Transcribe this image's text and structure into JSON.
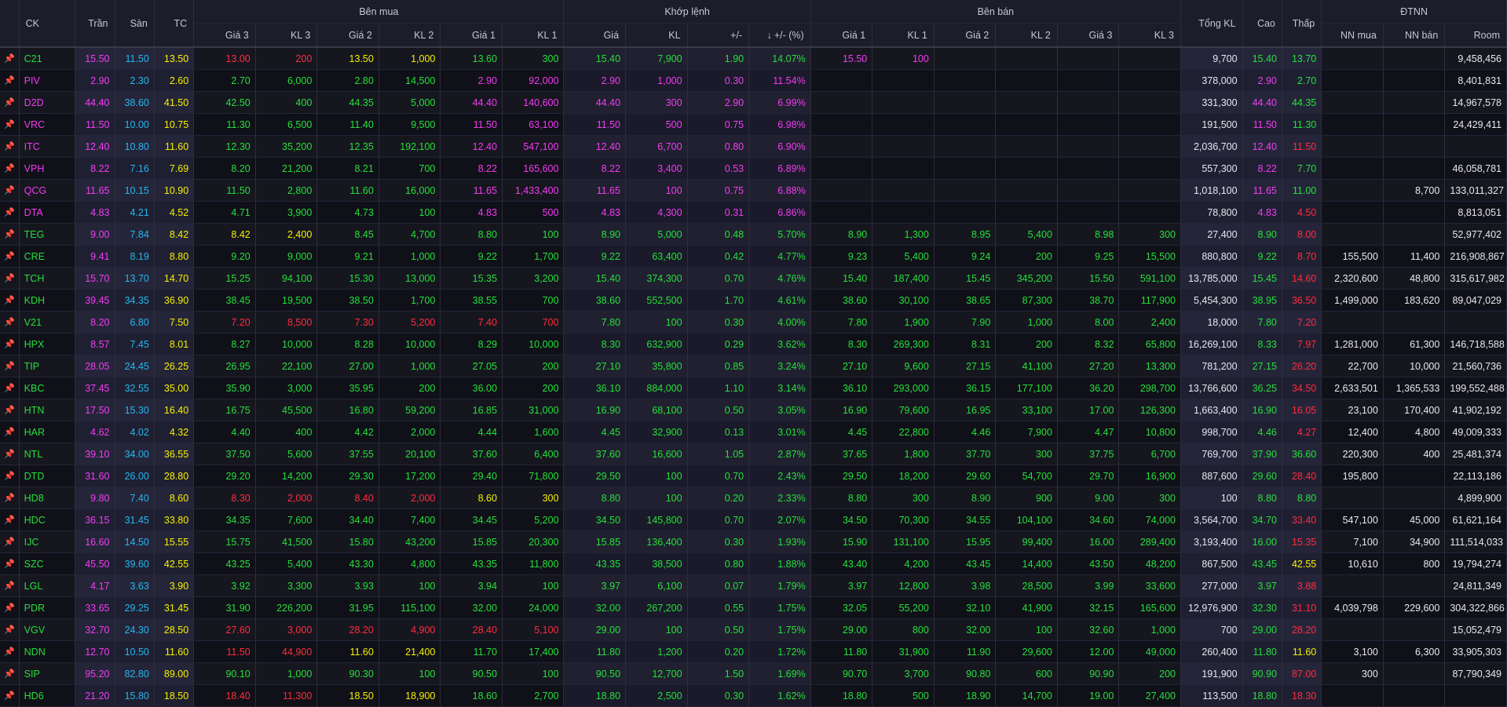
{
  "header": {
    "ck": "CK",
    "tran": "Trần",
    "san": "Sàn",
    "tc": "TC",
    "groups": {
      "ben_mua": "Bên mua",
      "khop_lenh": "Khớp lệnh",
      "ben_ban": "Bên bán",
      "dtnn": "ĐTNN"
    },
    "tong_kl": "Tổng KL",
    "cao": "Cao",
    "thap": "Thấp",
    "sub": [
      "Giá 3",
      "KL 3",
      "Giá 2",
      "KL 2",
      "Giá 1",
      "KL 1",
      "Giá",
      "KL",
      "+/-",
      "+/- (%)",
      "Giá 1",
      "KL 1",
      "Giá 2",
      "KL 2",
      "Giá 3",
      "KL 3",
      "NN mua",
      "NN bán",
      "Room"
    ],
    "sort_arrow": "↓"
  },
  "pin_icon": "📌",
  "colors": {
    "ceiling": "#f23cf2",
    "floor": "#22b8f0",
    "reference": "#f5f000",
    "up": "#25e03a",
    "down": "#ff2d3d",
    "neutral": "#e8e8ee"
  },
  "rows": [
    [
      "C21",
      "15.50",
      "11.50",
      "13.50",
      "13.00",
      "200",
      "13.50",
      "1,000",
      "13.60",
      "300",
      "15.40",
      "7,900",
      "1.90",
      "14.07%",
      "15.50",
      "100",
      "",
      "",
      "",
      "",
      "9,700",
      "15.40",
      "13.70",
      "",
      "",
      "9,458,456"
    ],
    [
      "PIV",
      "2.90",
      "2.30",
      "2.60",
      "2.70",
      "6,000",
      "2.80",
      "14,500",
      "2.90",
      "92,000",
      "2.90",
      "1,000",
      "0.30",
      "11.54%",
      "",
      "",
      "",
      "",
      "",
      "",
      "378,000",
      "2.90",
      "2.70",
      "",
      "",
      "8,401,831"
    ],
    [
      "D2D",
      "44.40",
      "38.60",
      "41.50",
      "42.50",
      "400",
      "44.35",
      "5,000",
      "44.40",
      "140,600",
      "44.40",
      "300",
      "2.90",
      "6.99%",
      "",
      "",
      "",
      "",
      "",
      "",
      "331,300",
      "44.40",
      "44.35",
      "",
      "",
      "14,967,578"
    ],
    [
      "VRC",
      "11.50",
      "10.00",
      "10.75",
      "11.30",
      "6,500",
      "11.40",
      "9,500",
      "11.50",
      "63,100",
      "11.50",
      "500",
      "0.75",
      "6.98%",
      "",
      "",
      "",
      "",
      "",
      "",
      "191,500",
      "11.50",
      "11.30",
      "",
      "",
      "24,429,411"
    ],
    [
      "ITC",
      "12.40",
      "10.80",
      "11.60",
      "12.30",
      "35,200",
      "12.35",
      "192,100",
      "12.40",
      "547,100",
      "12.40",
      "6,700",
      "0.80",
      "6.90%",
      "",
      "",
      "",
      "",
      "",
      "",
      "2,036,700",
      "12.40",
      "11.50",
      "",
      "",
      ""
    ],
    [
      "VPH",
      "8.22",
      "7.16",
      "7.69",
      "8.20",
      "21,200",
      "8.21",
      "700",
      "8.22",
      "165,600",
      "8.22",
      "3,400",
      "0.53",
      "6.89%",
      "",
      "",
      "",
      "",
      "",
      "",
      "557,300",
      "8.22",
      "7.70",
      "",
      "",
      "46,058,781"
    ],
    [
      "QCG",
      "11.65",
      "10.15",
      "10.90",
      "11.50",
      "2,800",
      "11.60",
      "16,000",
      "11.65",
      "1,433,400",
      "11.65",
      "100",
      "0.75",
      "6.88%",
      "",
      "",
      "",
      "",
      "",
      "",
      "1,018,100",
      "11.65",
      "11.00",
      "",
      "8,700",
      "133,011,327"
    ],
    [
      "DTA",
      "4.83",
      "4.21",
      "4.52",
      "4.71",
      "3,900",
      "4.73",
      "100",
      "4.83",
      "500",
      "4.83",
      "4,300",
      "0.31",
      "6.86%",
      "",
      "",
      "",
      "",
      "",
      "",
      "78,800",
      "4.83",
      "4.50",
      "",
      "",
      "8,813,051"
    ],
    [
      "TEG",
      "9.00",
      "7.84",
      "8.42",
      "8.42",
      "2,400",
      "8.45",
      "4,700",
      "8.80",
      "100",
      "8.90",
      "5,000",
      "0.48",
      "5.70%",
      "8.90",
      "1,300",
      "8.95",
      "5,400",
      "8.98",
      "300",
      "27,400",
      "8.90",
      "8.00",
      "",
      "",
      "52,977,402"
    ],
    [
      "CRE",
      "9.41",
      "8.19",
      "8.80",
      "9.20",
      "9,000",
      "9.21",
      "1,000",
      "9.22",
      "1,700",
      "9.22",
      "63,400",
      "0.42",
      "4.77%",
      "9.23",
      "5,400",
      "9.24",
      "200",
      "9.25",
      "15,500",
      "880,800",
      "9.22",
      "8.70",
      "155,500",
      "11,400",
      "216,908,867"
    ],
    [
      "TCH",
      "15.70",
      "13.70",
      "14.70",
      "15.25",
      "94,100",
      "15.30",
      "13,000",
      "15.35",
      "3,200",
      "15.40",
      "374,300",
      "0.70",
      "4.76%",
      "15.40",
      "187,400",
      "15.45",
      "345,200",
      "15.50",
      "591,100",
      "13,785,000",
      "15.45",
      "14.60",
      "2,320,600",
      "48,800",
      "315,617,982"
    ],
    [
      "KDH",
      "39.45",
      "34.35",
      "36.90",
      "38.45",
      "19,500",
      "38.50",
      "1,700",
      "38.55",
      "700",
      "38.60",
      "552,500",
      "1.70",
      "4.61%",
      "38.60",
      "30,100",
      "38.65",
      "87,300",
      "38.70",
      "117,900",
      "5,454,300",
      "38.95",
      "36.50",
      "1,499,000",
      "183,620",
      "89,047,029"
    ],
    [
      "V21",
      "8.20",
      "6.80",
      "7.50",
      "7.20",
      "8,500",
      "7.30",
      "5,200",
      "7.40",
      "700",
      "7.80",
      "100",
      "0.30",
      "4.00%",
      "7.80",
      "1,900",
      "7.90",
      "1,000",
      "8.00",
      "2,400",
      "18,000",
      "7.80",
      "7.20",
      "",
      "",
      ""
    ],
    [
      "HPX",
      "8.57",
      "7.45",
      "8.01",
      "8.27",
      "10,000",
      "8.28",
      "10,000",
      "8.29",
      "10,000",
      "8.30",
      "632,900",
      "0.29",
      "3.62%",
      "8.30",
      "269,300",
      "8.31",
      "200",
      "8.32",
      "65,800",
      "16,269,100",
      "8.33",
      "7.97",
      "1,281,000",
      "61,300",
      "146,718,588"
    ],
    [
      "TIP",
      "28.05",
      "24.45",
      "26.25",
      "26.95",
      "22,100",
      "27.00",
      "1,000",
      "27.05",
      "200",
      "27.10",
      "35,800",
      "0.85",
      "3.24%",
      "27.10",
      "9,600",
      "27.15",
      "41,100",
      "27.20",
      "13,300",
      "781,200",
      "27.15",
      "26.20",
      "22,700",
      "10,000",
      "21,560,736"
    ],
    [
      "KBC",
      "37.45",
      "32.55",
      "35.00",
      "35.90",
      "3,000",
      "35.95",
      "200",
      "36.00",
      "200",
      "36.10",
      "884,000",
      "1.10",
      "3.14%",
      "36.10",
      "293,000",
      "36.15",
      "177,100",
      "36.20",
      "298,700",
      "13,766,600",
      "36.25",
      "34.50",
      "2,633,501",
      "1,365,533",
      "199,552,488"
    ],
    [
      "HTN",
      "17.50",
      "15.30",
      "16.40",
      "16.75",
      "45,500",
      "16.80",
      "59,200",
      "16.85",
      "31,000",
      "16.90",
      "68,100",
      "0.50",
      "3.05%",
      "16.90",
      "79,600",
      "16.95",
      "33,100",
      "17.00",
      "126,300",
      "1,663,400",
      "16.90",
      "16.05",
      "23,100",
      "170,400",
      "41,902,192"
    ],
    [
      "HAR",
      "4.62",
      "4.02",
      "4.32",
      "4.40",
      "400",
      "4.42",
      "2,000",
      "4.44",
      "1,600",
      "4.45",
      "32,900",
      "0.13",
      "3.01%",
      "4.45",
      "22,800",
      "4.46",
      "7,900",
      "4.47",
      "10,800",
      "998,700",
      "4.46",
      "4.27",
      "12,400",
      "4,800",
      "49,009,333"
    ],
    [
      "NTL",
      "39.10",
      "34.00",
      "36.55",
      "37.50",
      "5,600",
      "37.55",
      "20,100",
      "37.60",
      "6,400",
      "37.60",
      "16,600",
      "1.05",
      "2.87%",
      "37.65",
      "1,800",
      "37.70",
      "300",
      "37.75",
      "6,700",
      "769,700",
      "37.90",
      "36.60",
      "220,300",
      "400",
      "25,481,374"
    ],
    [
      "DTD",
      "31.60",
      "26.00",
      "28.80",
      "29.20",
      "14,200",
      "29.30",
      "17,200",
      "29.40",
      "71,800",
      "29.50",
      "100",
      "0.70",
      "2.43%",
      "29.50",
      "18,200",
      "29.60",
      "54,700",
      "29.70",
      "16,900",
      "887,600",
      "29.60",
      "28.40",
      "195,800",
      "",
      "22,113,186"
    ],
    [
      "HD8",
      "9.80",
      "7.40",
      "8.60",
      "8.30",
      "2,000",
      "8.40",
      "2,000",
      "8.60",
      "300",
      "8.80",
      "100",
      "0.20",
      "2.33%",
      "8.80",
      "300",
      "8.90",
      "900",
      "9.00",
      "300",
      "100",
      "8.80",
      "8.80",
      "",
      "",
      "4,899,900"
    ],
    [
      "HDC",
      "36.15",
      "31.45",
      "33.80",
      "34.35",
      "7,600",
      "34.40",
      "7,400",
      "34.45",
      "5,200",
      "34.50",
      "145,800",
      "0.70",
      "2.07%",
      "34.50",
      "70,300",
      "34.55",
      "104,100",
      "34.60",
      "74,000",
      "3,564,700",
      "34.70",
      "33.40",
      "547,100",
      "45,000",
      "61,621,164"
    ],
    [
      "IJC",
      "16.60",
      "14.50",
      "15.55",
      "15.75",
      "41,500",
      "15.80",
      "43,200",
      "15.85",
      "20,300",
      "15.85",
      "136,400",
      "0.30",
      "1.93%",
      "15.90",
      "131,100",
      "15.95",
      "99,400",
      "16.00",
      "289,400",
      "3,193,400",
      "16.00",
      "15.35",
      "7,100",
      "34,900",
      "111,514,033"
    ],
    [
      "SZC",
      "45.50",
      "39.60",
      "42.55",
      "43.25",
      "5,400",
      "43.30",
      "4,800",
      "43.35",
      "11,800",
      "43.35",
      "38,500",
      "0.80",
      "1.88%",
      "43.40",
      "4,200",
      "43.45",
      "14,400",
      "43.50",
      "48,200",
      "867,500",
      "43.45",
      "42.55",
      "10,610",
      "800",
      "19,794,274"
    ],
    [
      "LGL",
      "4.17",
      "3.63",
      "3.90",
      "3.92",
      "3,300",
      "3.93",
      "100",
      "3.94",
      "100",
      "3.97",
      "6,100",
      "0.07",
      "1.79%",
      "3.97",
      "12,800",
      "3.98",
      "28,500",
      "3.99",
      "33,600",
      "277,000",
      "3.97",
      "3.88",
      "",
      "",
      "24,811,349"
    ],
    [
      "PDR",
      "33.65",
      "29.25",
      "31.45",
      "31.90",
      "226,200",
      "31.95",
      "115,100",
      "32.00",
      "24,000",
      "32.00",
      "267,200",
      "0.55",
      "1.75%",
      "32.05",
      "55,200",
      "32.10",
      "41,900",
      "32.15",
      "165,600",
      "12,976,900",
      "32.30",
      "31.10",
      "4,039,798",
      "229,600",
      "304,322,866"
    ],
    [
      "VGV",
      "32.70",
      "24.30",
      "28.50",
      "27.60",
      "3,000",
      "28.20",
      "4,900",
      "28.40",
      "5,100",
      "29.00",
      "100",
      "0.50",
      "1.75%",
      "29.00",
      "800",
      "32.00",
      "100",
      "32.60",
      "1,000",
      "700",
      "29.00",
      "28.20",
      "",
      "",
      "15,052,479"
    ],
    [
      "NDN",
      "12.70",
      "10.50",
      "11.60",
      "11.50",
      "44,900",
      "11.60",
      "21,400",
      "11.70",
      "17,400",
      "11.80",
      "1,200",
      "0.20",
      "1.72%",
      "11.80",
      "31,900",
      "11.90",
      "29,600",
      "12.00",
      "49,000",
      "260,400",
      "11.80",
      "11.60",
      "3,100",
      "6,300",
      "33,905,303"
    ],
    [
      "SIP",
      "95.20",
      "82.80",
      "89.00",
      "90.10",
      "1,000",
      "90.30",
      "100",
      "90.50",
      "100",
      "90.50",
      "12,700",
      "1.50",
      "1.69%",
      "90.70",
      "3,700",
      "90.80",
      "600",
      "90.90",
      "200",
      "191,900",
      "90.90",
      "87.00",
      "300",
      "",
      "87,790,349"
    ],
    [
      "HD6",
      "21.20",
      "15.80",
      "18.50",
      "18.40",
      "11,300",
      "18.50",
      "18,900",
      "18.60",
      "2,700",
      "18.80",
      "2,500",
      "0.30",
      "1.62%",
      "18.80",
      "500",
      "18.90",
      "14,700",
      "19.00",
      "27,400",
      "113,500",
      "18.80",
      "18.30",
      "",
      "",
      ""
    ]
  ]
}
